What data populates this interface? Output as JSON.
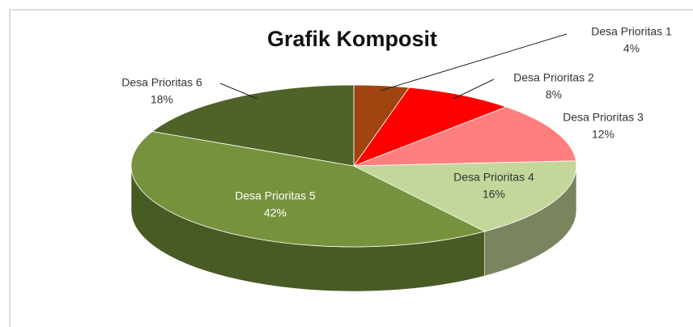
{
  "chart_data": {
    "type": "pie3d",
    "title": "Grafik Komposit",
    "categories": [
      "Desa Prioritas 1",
      "Desa Prioritas 2",
      "Desa Prioritas 3",
      "Desa Prioritas 4",
      "Desa Prioritas 5",
      "Desa Prioritas 6"
    ],
    "values": [
      4,
      8,
      12,
      16,
      42,
      18
    ],
    "value_labels": [
      "4%",
      "8%",
      "12%",
      "16%",
      "42%",
      "18%"
    ],
    "colors": [
      "#a0450f",
      "#ff0000",
      "#ff7f7f",
      "#c4d79b",
      "#76923c",
      "#4f6228"
    ]
  }
}
